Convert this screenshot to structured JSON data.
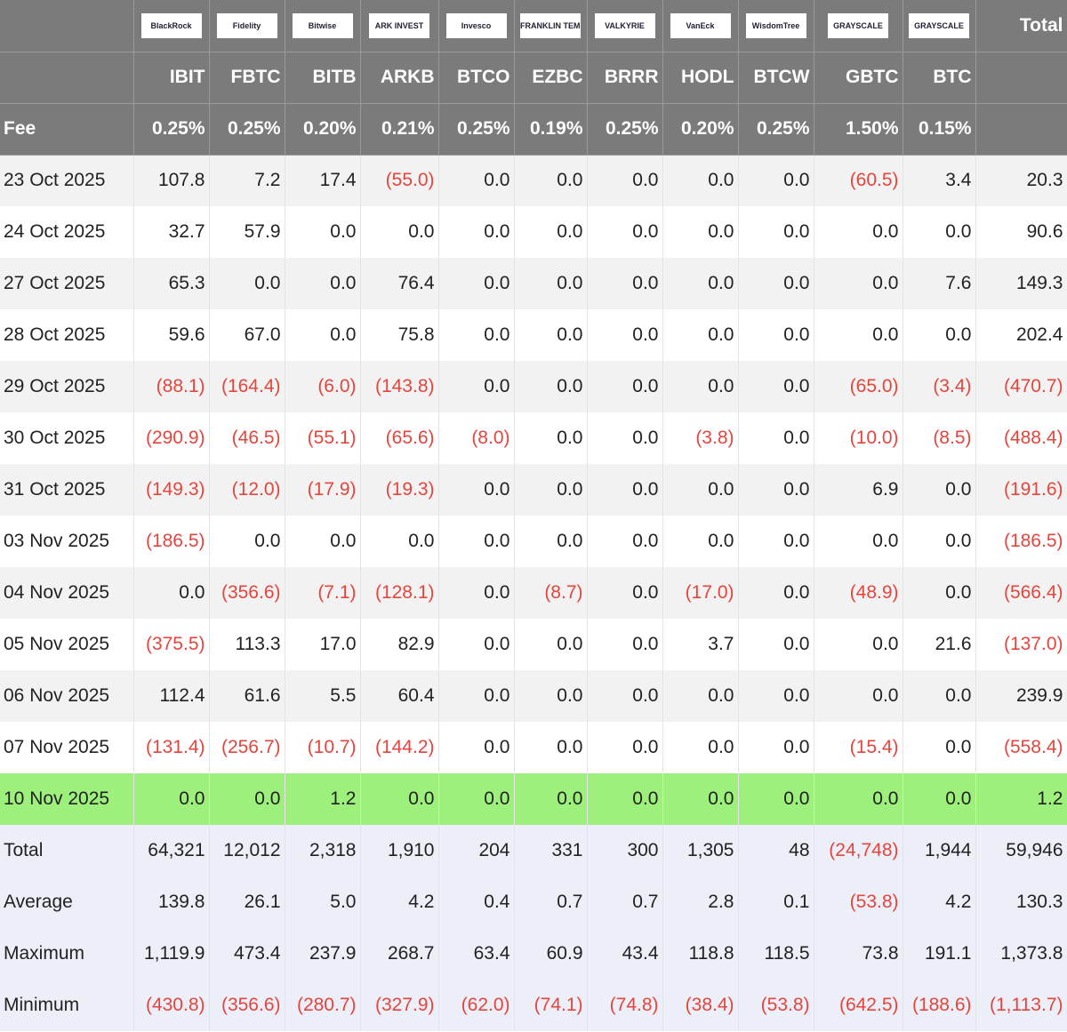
{
  "table": {
    "issuers": [
      "BlackRock",
      "Fidelity",
      "Bitwise",
      "ARK INVEST",
      "Invesco",
      "FRANKLIN TEMPLETON",
      "VALKYRIE",
      "VanEck",
      "WisdomTree",
      "GRAYSCALE",
      "GRAYSCALE"
    ],
    "total_header": "Total",
    "tickers": [
      "IBIT",
      "FBTC",
      "BITB",
      "ARKB",
      "BTCO",
      "EZBC",
      "BRRR",
      "HODL",
      "BTCW",
      "GBTC",
      "BTC"
    ],
    "fee_label": "Fee",
    "fees": [
      "0.25%",
      "0.25%",
      "0.20%",
      "0.21%",
      "0.25%",
      "0.19%",
      "0.25%",
      "0.20%",
      "0.25%",
      "1.50%",
      "0.15%"
    ],
    "rows": [
      {
        "date": "23 Oct 2025",
        "values": [
          "107.8",
          "7.2",
          "17.4",
          "(55.0)",
          "0.0",
          "0.0",
          "0.0",
          "0.0",
          "0.0",
          "(60.5)",
          "3.4",
          "20.3"
        ]
      },
      {
        "date": "24 Oct 2025",
        "values": [
          "32.7",
          "57.9",
          "0.0",
          "0.0",
          "0.0",
          "0.0",
          "0.0",
          "0.0",
          "0.0",
          "0.0",
          "0.0",
          "90.6"
        ]
      },
      {
        "date": "27 Oct 2025",
        "values": [
          "65.3",
          "0.0",
          "0.0",
          "76.4",
          "0.0",
          "0.0",
          "0.0",
          "0.0",
          "0.0",
          "0.0",
          "7.6",
          "149.3"
        ]
      },
      {
        "date": "28 Oct 2025",
        "values": [
          "59.6",
          "67.0",
          "0.0",
          "75.8",
          "0.0",
          "0.0",
          "0.0",
          "0.0",
          "0.0",
          "0.0",
          "0.0",
          "202.4"
        ]
      },
      {
        "date": "29 Oct 2025",
        "values": [
          "(88.1)",
          "(164.4)",
          "(6.0)",
          "(143.8)",
          "0.0",
          "0.0",
          "0.0",
          "0.0",
          "0.0",
          "(65.0)",
          "(3.4)",
          "(470.7)"
        ]
      },
      {
        "date": "30 Oct 2025",
        "values": [
          "(290.9)",
          "(46.5)",
          "(55.1)",
          "(65.6)",
          "(8.0)",
          "0.0",
          "0.0",
          "(3.8)",
          "0.0",
          "(10.0)",
          "(8.5)",
          "(488.4)"
        ]
      },
      {
        "date": "31 Oct 2025",
        "values": [
          "(149.3)",
          "(12.0)",
          "(17.9)",
          "(19.3)",
          "0.0",
          "0.0",
          "0.0",
          "0.0",
          "0.0",
          "6.9",
          "0.0",
          "(191.6)"
        ]
      },
      {
        "date": "03 Nov 2025",
        "values": [
          "(186.5)",
          "0.0",
          "0.0",
          "0.0",
          "0.0",
          "0.0",
          "0.0",
          "0.0",
          "0.0",
          "0.0",
          "0.0",
          "(186.5)"
        ]
      },
      {
        "date": "04 Nov 2025",
        "values": [
          "0.0",
          "(356.6)",
          "(7.1)",
          "(128.1)",
          "0.0",
          "(8.7)",
          "0.0",
          "(17.0)",
          "0.0",
          "(48.9)",
          "0.0",
          "(566.4)"
        ]
      },
      {
        "date": "05 Nov 2025",
        "values": [
          "(375.5)",
          "113.3",
          "17.0",
          "82.9",
          "0.0",
          "0.0",
          "0.0",
          "3.7",
          "0.0",
          "0.0",
          "21.6",
          "(137.0)"
        ]
      },
      {
        "date": "06 Nov 2025",
        "values": [
          "112.4",
          "61.6",
          "5.5",
          "60.4",
          "0.0",
          "0.0",
          "0.0",
          "0.0",
          "0.0",
          "0.0",
          "0.0",
          "239.9"
        ]
      },
      {
        "date": "07 Nov 2025",
        "values": [
          "(131.4)",
          "(256.7)",
          "(10.7)",
          "(144.2)",
          "0.0",
          "0.0",
          "0.0",
          "0.0",
          "0.0",
          "(15.4)",
          "0.0",
          "(558.4)"
        ]
      },
      {
        "date": "10 Nov 2025",
        "values": [
          "0.0",
          "0.0",
          "1.2",
          "0.0",
          "0.0",
          "0.0",
          "0.0",
          "0.0",
          "0.0",
          "0.0",
          "0.0",
          "1.2"
        ]
      }
    ],
    "summary": [
      {
        "label": "Total",
        "values": [
          "64,321",
          "12,012",
          "2,318",
          "1,910",
          "204",
          "331",
          "300",
          "1,305",
          "48",
          "(24,748)",
          "1,944",
          "59,946"
        ]
      },
      {
        "label": "Average",
        "values": [
          "139.8",
          "26.1",
          "5.0",
          "4.2",
          "0.4",
          "0.7",
          "0.7",
          "2.8",
          "0.1",
          "(53.8)",
          "4.2",
          "130.3"
        ]
      },
      {
        "label": "Maximum",
        "values": [
          "1,119.9",
          "473.4",
          "237.9",
          "268.7",
          "63.4",
          "60.9",
          "43.4",
          "118.8",
          "118.5",
          "73.8",
          "191.1",
          "1,373.8"
        ]
      },
      {
        "label": "Minimum",
        "values": [
          "(430.8)",
          "(356.6)",
          "(280.7)",
          "(327.9)",
          "(62.0)",
          "(74.1)",
          "(74.8)",
          "(38.4)",
          "(53.8)",
          "(642.5)",
          "(188.6)",
          "(1,113.7)"
        ]
      }
    ]
  }
}
